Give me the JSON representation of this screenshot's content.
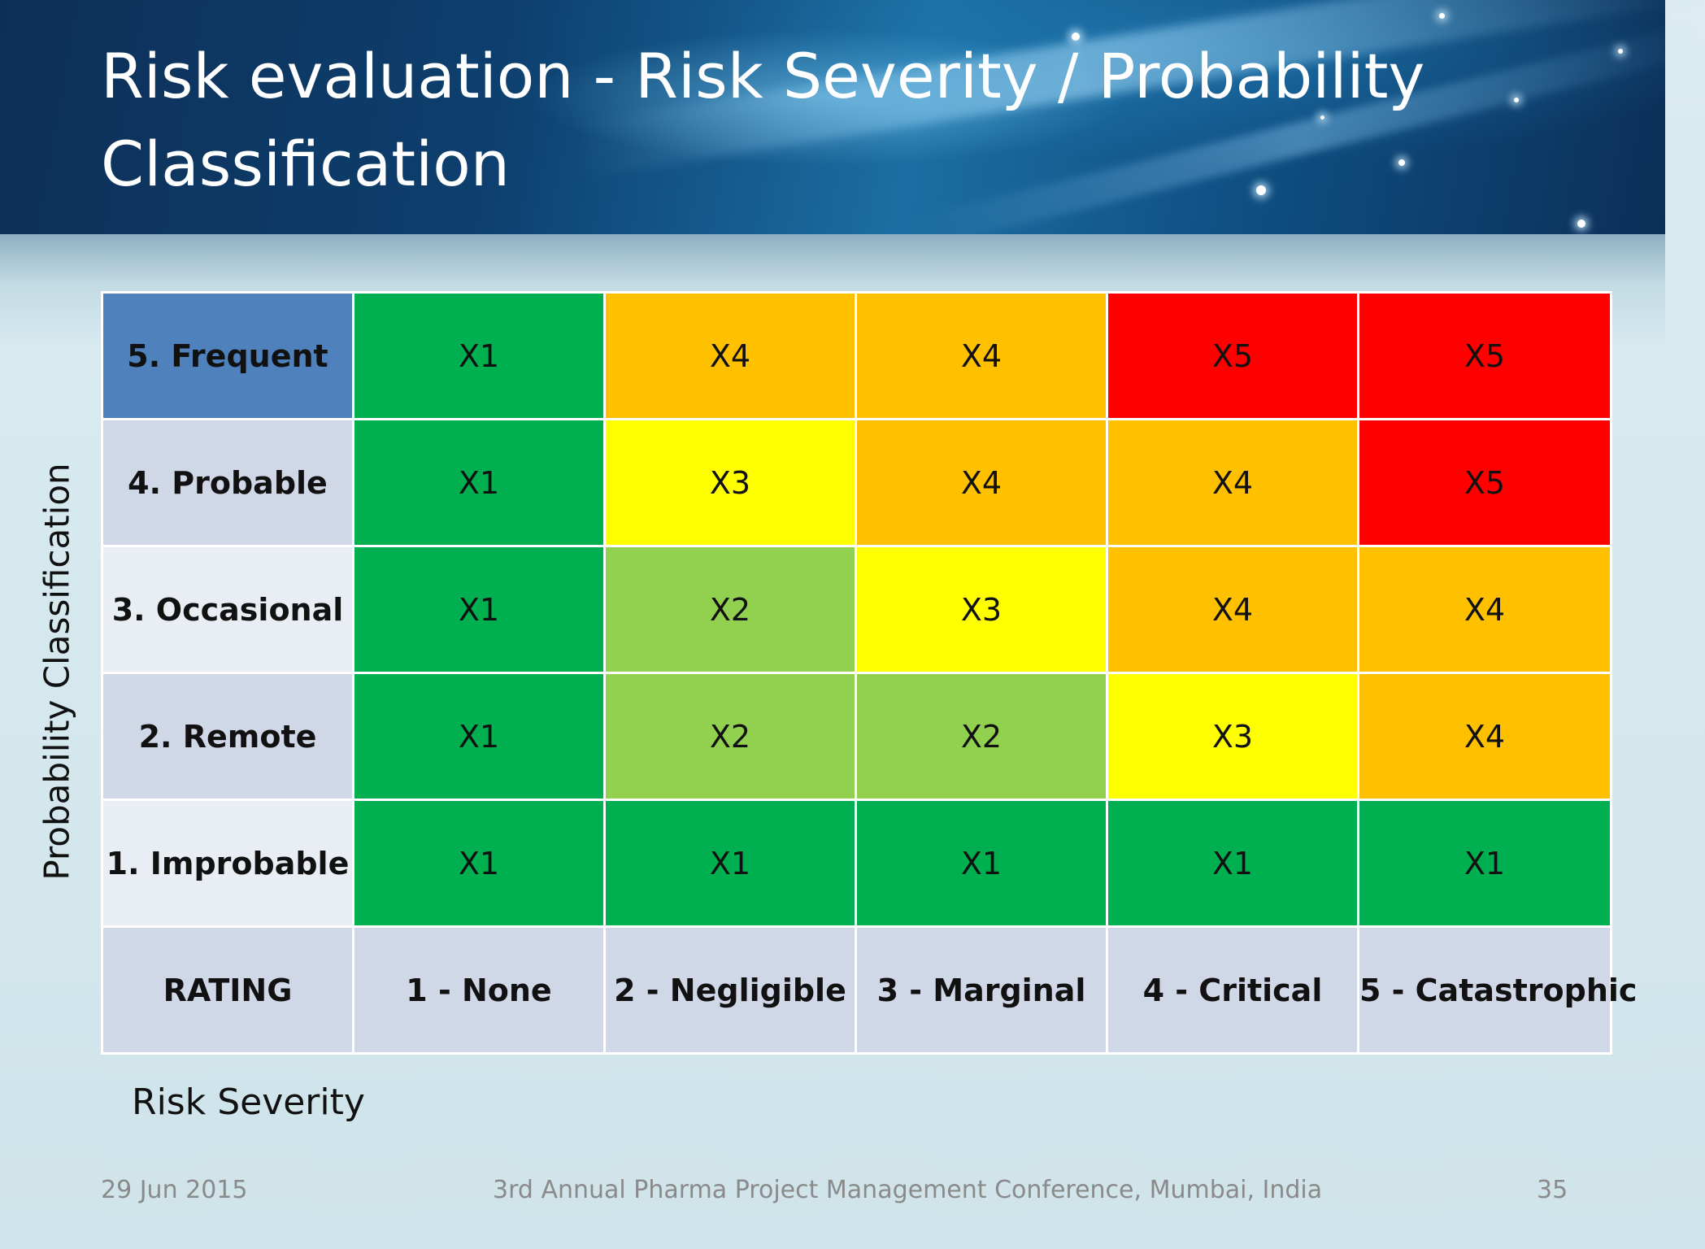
{
  "slide": {
    "title": "Risk evaluation - Risk Severity / Probability Classification",
    "y_axis_label": "Probability Classification",
    "x_axis_label": "Risk Severity"
  },
  "colors": {
    "header_blue": "#4f81bd",
    "row_light": "#e9edf4",
    "row_dark": "#d0d8e8",
    "X1": "#00b050",
    "X2": "#92d050",
    "X3": "#ffff00",
    "X4": "#ffc000",
    "X5": "#ff0000"
  },
  "matrix": {
    "rows": [
      {
        "label": "5. Frequent",
        "cells": [
          "X1",
          "X4",
          "X4",
          "X5",
          "X5"
        ]
      },
      {
        "label": "4. Probable",
        "cells": [
          "X1",
          "X3",
          "X4",
          "X4",
          "X5"
        ]
      },
      {
        "label": "3. Occasional",
        "cells": [
          "X1",
          "X2",
          "X3",
          "X4",
          "X4"
        ]
      },
      {
        "label": "2. Remote",
        "cells": [
          "X1",
          "X2",
          "X2",
          "X3",
          "X4"
        ]
      },
      {
        "label": "1. Improbable",
        "cells": [
          "X1",
          "X1",
          "X1",
          "X1",
          "X1"
        ]
      }
    ],
    "rating_label": "RATING",
    "severity": [
      "1 - None",
      "2 - Negligible",
      "3 - Marginal",
      "4 - Critical",
      "5 - Catastrophic"
    ]
  },
  "footer": {
    "date": "29 Jun 2015",
    "event": "3rd Annual Pharma Project Management Conference, Mumbai, India",
    "page": "35"
  }
}
